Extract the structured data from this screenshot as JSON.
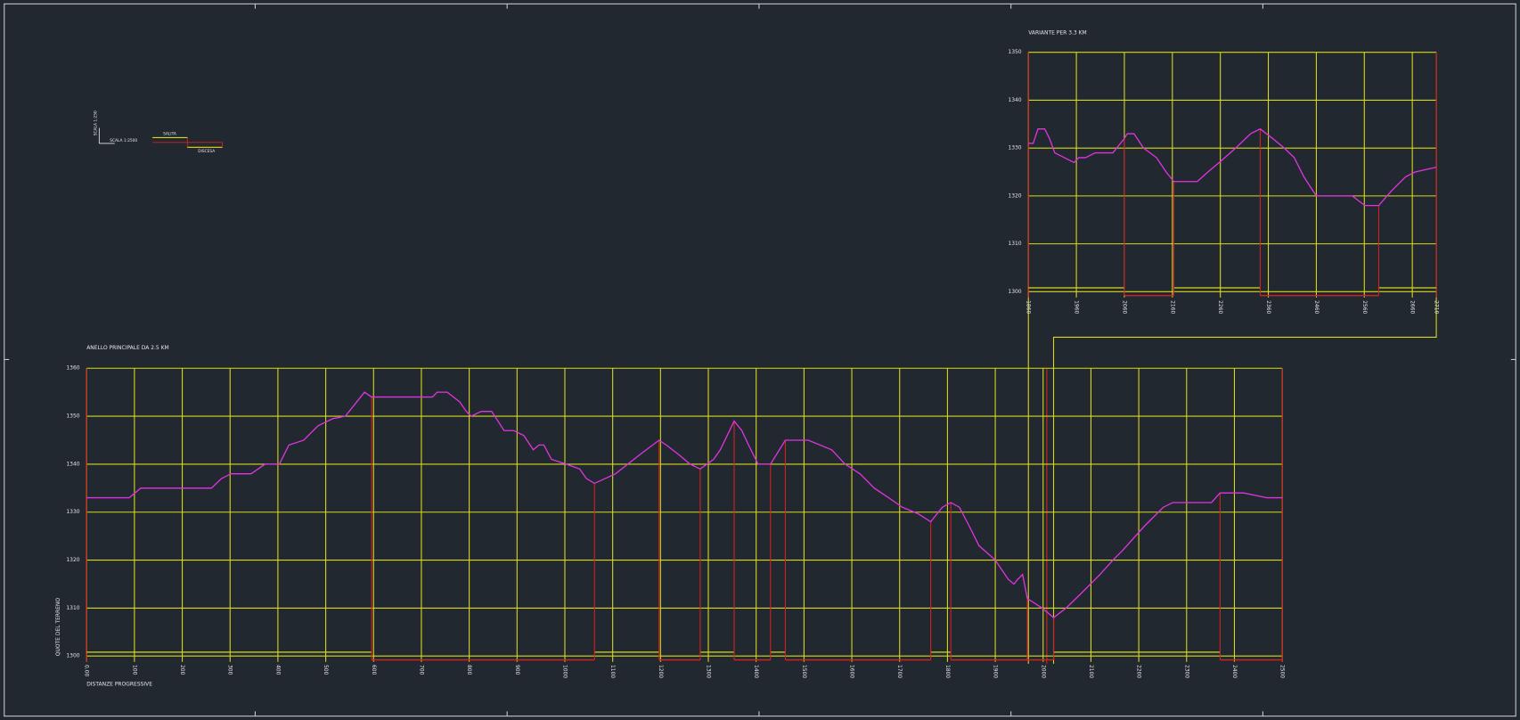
{
  "legend": {
    "scale_vertical": "SCALA 1:250",
    "scale_horizontal": "SCALA 1:2500",
    "up": "SALITA",
    "down": "DISCESA"
  },
  "chart_data": [
    {
      "type": "line",
      "title": "ANELLO PRINCIPALE DA 2.5 KM",
      "x_label": "DISTANZE PROGRESSIVE",
      "y_label": "QUOTE DEL TERRENO",
      "xlim": [
        0,
        2500
      ],
      "xticks": [
        {
          "value": 0,
          "label": "0.00"
        },
        100,
        200,
        300,
        400,
        500,
        600,
        700,
        800,
        900,
        1000,
        1100,
        1200,
        1300,
        1400,
        1500,
        1600,
        1700,
        1800,
        1900,
        2000,
        2100,
        2200,
        2300,
        2400,
        2500
      ],
      "ylim": [
        1300,
        1360
      ],
      "yticks": [
        1300,
        1310,
        1320,
        1330,
        1340,
        1350,
        1360
      ],
      "grid": true,
      "grid_color": "#d9d91c",
      "frame_color": "#d42222",
      "color": "#e233e2",
      "up_color": "#d9d91c",
      "down_color": "#d42222",
      "x": [
        0,
        89,
        113,
        261,
        282,
        302,
        344,
        373,
        403,
        423,
        454,
        484,
        515,
        541,
        581,
        596,
        723,
        733,
        754,
        780,
        794,
        804,
        825,
        847,
        873,
        893,
        914,
        934,
        946,
        956,
        972,
        1003,
        1031,
        1045,
        1062,
        1106,
        1157,
        1197,
        1212,
        1238,
        1262,
        1283,
        1311,
        1325,
        1354,
        1370,
        1384,
        1404,
        1430,
        1461,
        1509,
        1558,
        1586,
        1617,
        1647,
        1677,
        1706,
        1738,
        1765,
        1789,
        1807,
        1825,
        1846,
        1866,
        1900,
        1927,
        1939,
        1947,
        1957,
        1967,
        1998,
        2022,
        2048,
        2079,
        2119,
        2146,
        2166,
        2211,
        2251,
        2271,
        2352,
        2370,
        2419,
        2468,
        2500
      ],
      "values": [
        1333,
        1333,
        1335,
        1335,
        1337,
        1338,
        1338,
        1340,
        1340,
        1344,
        1345,
        1348,
        1349.5,
        1350,
        1355,
        1354,
        1354,
        1355,
        1355,
        1353,
        1351,
        1350,
        1351,
        1351,
        1347,
        1347,
        1346,
        1343,
        1344,
        1344,
        1341,
        1340,
        1339,
        1337,
        1336,
        1338,
        1342,
        1345,
        1344,
        1342,
        1340,
        1339,
        1341,
        1343,
        1349,
        1347,
        1344,
        1340,
        1340,
        1345,
        1345,
        1343,
        1340,
        1338,
        1335,
        1333,
        1331,
        1329.7,
        1328,
        1331,
        1332,
        1331,
        1327,
        1323,
        1320,
        1316,
        1315,
        1316,
        1317,
        1312,
        1310,
        1308,
        1310,
        1313,
        1317,
        1320,
        1322,
        1327,
        1331,
        1332,
        1332,
        1334,
        1334,
        1333,
        1333
      ],
      "slope_breaks": [
        596,
        1062,
        1197,
        1283,
        1354,
        1430,
        1461,
        1765,
        1807,
        1967,
        2022,
        2370
      ]
    },
    {
      "type": "line",
      "title": "VARIANTE PER 3.3 KM",
      "xlim": [
        1860,
        2710
      ],
      "xticks": [
        1860,
        1960,
        2060,
        2160,
        2260,
        2360,
        2460,
        2560,
        2660,
        2710
      ],
      "ylim": [
        1300,
        1350
      ],
      "yticks": [
        1300,
        1310,
        1320,
        1330,
        1340,
        1350
      ],
      "grid": true,
      "grid_color": "#d9d91c",
      "frame_color": "#d42222",
      "color": "#e233e2",
      "up_color": "#d9d91c",
      "down_color": "#d42222",
      "x": [
        1860,
        1870,
        1880,
        1894,
        1904,
        1915,
        1935,
        1955,
        1965,
        1979,
        1999,
        2036,
        2060,
        2066,
        2080,
        2100,
        2127,
        2147,
        2163,
        2212,
        2234,
        2258,
        2292,
        2323,
        2343,
        2369,
        2393,
        2414,
        2434,
        2460,
        2535,
        2561,
        2590,
        2616,
        2646,
        2666,
        2710
      ],
      "values": [
        1331,
        1331,
        1334,
        1334,
        1332,
        1329,
        1328,
        1327,
        1328,
        1328,
        1329,
        1329,
        1332,
        1333,
        1333,
        1330,
        1328,
        1325,
        1323,
        1323,
        1325,
        1327,
        1330,
        1333,
        1334,
        1332,
        1330,
        1328,
        1324,
        1320,
        1320,
        1318,
        1318,
        1321,
        1324,
        1325,
        1326
      ],
      "slope_breaks": [
        2060,
        2163,
        2343,
        2590
      ]
    }
  ]
}
